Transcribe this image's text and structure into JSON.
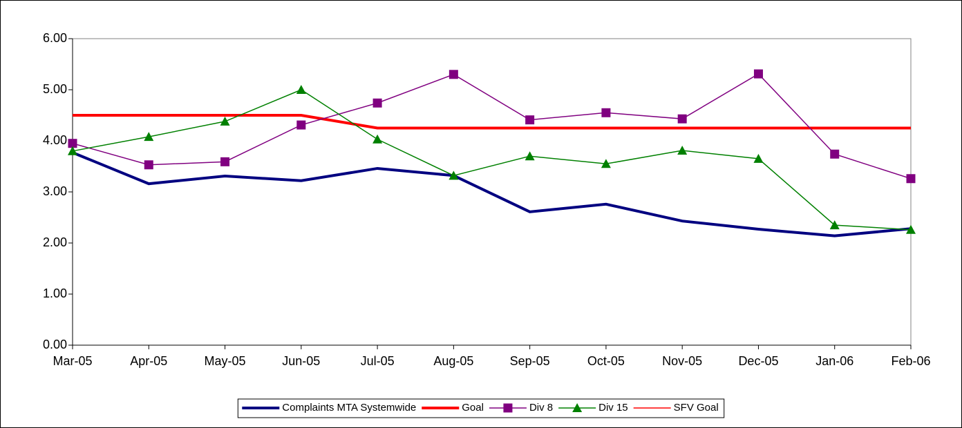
{
  "chart_data": {
    "type": "line",
    "categories": [
      "Mar-05",
      "Apr-05",
      "May-05",
      "Jun-05",
      "Jul-05",
      "Aug-05",
      "Sep-05",
      "Oct-05",
      "Nov-05",
      "Dec-05",
      "Jan-06",
      "Feb-06"
    ],
    "series": [
      {
        "name": "Complaints MTA Systemwide",
        "color": "#000080",
        "line_width": 4,
        "marker": "none",
        "values": [
          3.77,
          3.16,
          3.31,
          3.22,
          3.46,
          3.32,
          2.61,
          2.76,
          2.43,
          2.27,
          2.14,
          2.28
        ]
      },
      {
        "name": "Goal",
        "color": "#ff0000",
        "line_width": 4,
        "marker": "none",
        "values": [
          4.5,
          4.5,
          4.5,
          4.5,
          4.25,
          4.25,
          4.25,
          4.25,
          4.25,
          4.25,
          4.25,
          4.25
        ]
      },
      {
        "name": "Div 8",
        "color": "#800080",
        "line_width": 1.5,
        "marker": "square",
        "values": [
          3.95,
          3.53,
          3.59,
          4.31,
          4.74,
          5.3,
          4.41,
          4.55,
          4.43,
          5.31,
          3.74,
          3.26
        ]
      },
      {
        "name": "Div 15",
        "color": "#008000",
        "line_width": 1.5,
        "marker": "triangle",
        "values": [
          3.8,
          4.08,
          4.38,
          5.0,
          4.03,
          3.32,
          3.7,
          3.55,
          3.81,
          3.65,
          2.35,
          2.26
        ]
      },
      {
        "name": "SFV Goal",
        "color": "#ff0000",
        "line_width": 1.5,
        "marker": "none",
        "values": [
          4.5,
          4.5,
          4.5,
          4.5,
          4.25,
          4.25,
          4.25,
          4.25,
          4.25,
          4.25,
          4.25,
          4.25
        ]
      }
    ],
    "ylim": [
      0,
      6
    ],
    "yticks": [
      {
        "value": 0,
        "label": "0.00"
      },
      {
        "value": 1,
        "label": "1.00"
      },
      {
        "value": 2,
        "label": "2.00"
      },
      {
        "value": 3,
        "label": "3.00"
      },
      {
        "value": 4,
        "label": "4.00"
      },
      {
        "value": 5,
        "label": "5.00"
      },
      {
        "value": 6,
        "label": "6.00"
      }
    ],
    "legend": "bottom"
  }
}
